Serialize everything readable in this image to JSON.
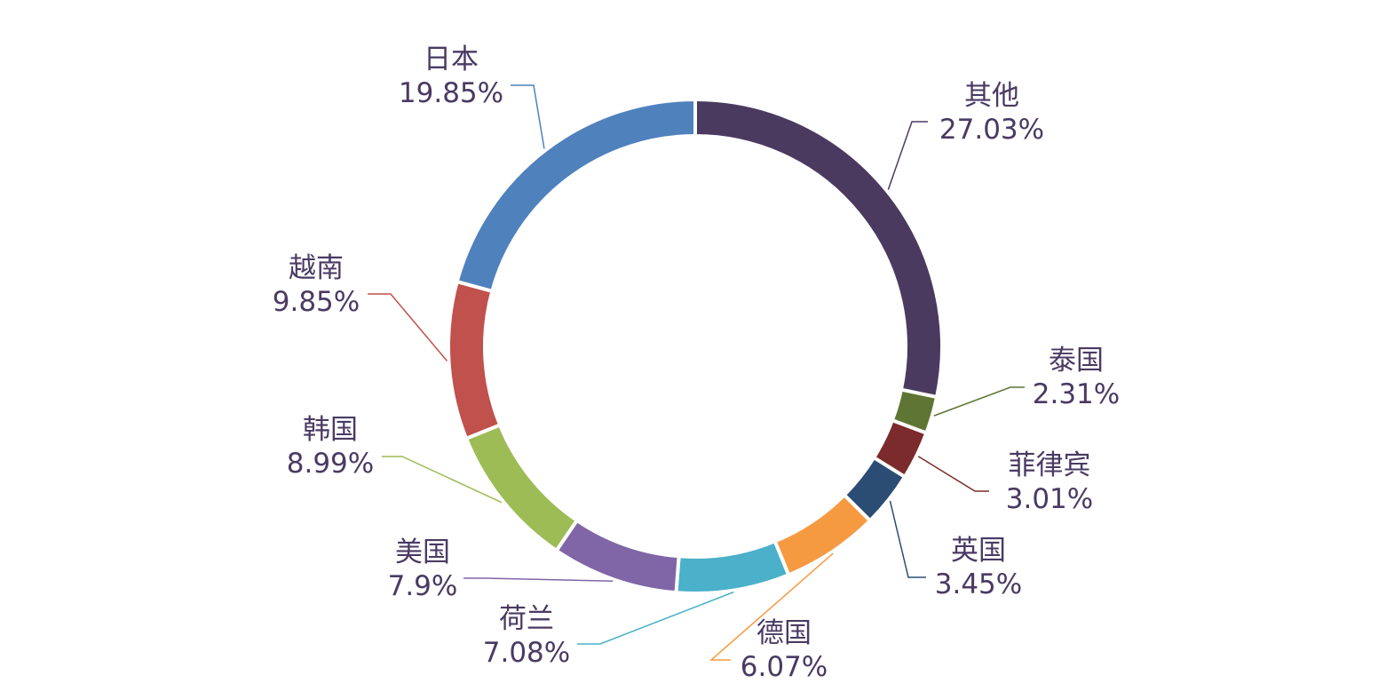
{
  "chart_data": {
    "type": "pie",
    "variant": "donut",
    "title": "",
    "legend": "none",
    "slices": [
      {
        "label": "其他",
        "value": 27.03,
        "display": "27.03%",
        "color": "#4b3a60"
      },
      {
        "label": "泰国",
        "value": 2.31,
        "display": "2.31%",
        "color": "#5f7533"
      },
      {
        "label": "菲律宾",
        "value": 3.01,
        "display": "3.01%",
        "color": "#7b2b2b"
      },
      {
        "label": "英国",
        "value": 3.45,
        "display": "3.45%",
        "color": "#2b4d74"
      },
      {
        "label": "德国",
        "value": 6.07,
        "display": "6.07%",
        "color": "#f69a42"
      },
      {
        "label": "荷兰",
        "value": 7.08,
        "display": "7.08%",
        "color": "#4bb0c9"
      },
      {
        "label": "美国",
        "value": 7.9,
        "display": "7.9%",
        "color": "#8065a7"
      },
      {
        "label": "韩国",
        "value": 8.99,
        "display": "8.99%",
        "color": "#9dbc56"
      },
      {
        "label": "越南",
        "value": 9.85,
        "display": "9.85%",
        "color": "#c0514c"
      },
      {
        "label": "日本",
        "value": 19.85,
        "display": "19.85%",
        "color": "#4f81bd"
      }
    ]
  }
}
